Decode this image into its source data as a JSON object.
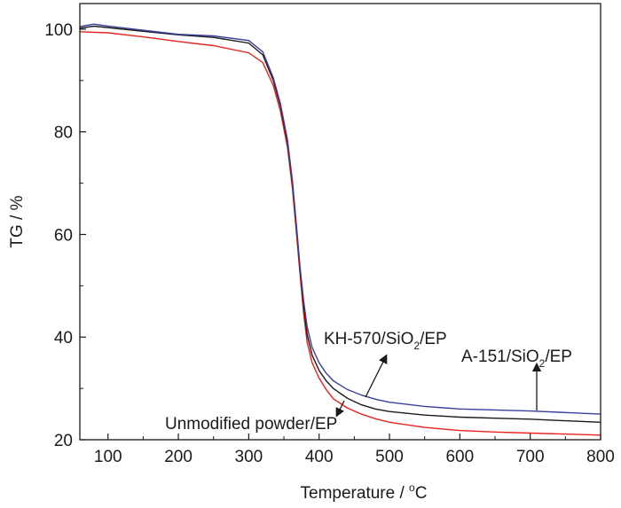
{
  "chart_data": {
    "type": "line",
    "xlabel": "Temperature / ",
    "xlabel_unit_sup": "o",
    "xlabel_unit": "C",
    "ylabel": "TG / %",
    "xlim": [
      60,
      800
    ],
    "ylim": [
      20,
      105
    ],
    "xticks": [
      100,
      200,
      300,
      400,
      500,
      600,
      700,
      800
    ],
    "yticks": [
      20,
      40,
      60,
      80,
      100
    ],
    "grid": false,
    "series": [
      {
        "color": "#e8231f",
        "x": [
          60,
          100,
          150,
          200,
          250,
          300,
          320,
          335,
          345,
          355,
          362,
          368,
          373,
          378,
          383,
          390,
          400,
          410,
          420,
          440,
          460,
          480,
          500,
          550,
          600,
          650,
          700,
          750,
          800
        ],
        "y": [
          99.5,
          99.3,
          98.5,
          97.6,
          96.8,
          95.4,
          93.5,
          89.0,
          84.0,
          77.0,
          69.0,
          60.0,
          52.0,
          44.5,
          39.0,
          35.0,
          32.0,
          29.8,
          28.0,
          26.2,
          25.0,
          24.1,
          23.4,
          22.4,
          21.8,
          21.5,
          21.3,
          21.1,
          20.9
        ]
      },
      {
        "color": "#1a1a1a",
        "x": [
          60,
          80,
          100,
          150,
          200,
          250,
          300,
          320,
          335,
          345,
          355,
          362,
          368,
          373,
          378,
          383,
          390,
          400,
          410,
          420,
          440,
          460,
          480,
          500,
          550,
          600,
          650,
          700,
          750,
          800
        ],
        "y": [
          100.2,
          100.6,
          100.3,
          99.6,
          98.9,
          98.4,
          97.3,
          95.0,
          90.0,
          85.0,
          78.0,
          70.0,
          61.0,
          53.0,
          46.0,
          40.5,
          36.5,
          33.5,
          31.5,
          30.0,
          28.1,
          26.8,
          26.0,
          25.5,
          24.8,
          24.4,
          24.2,
          24.0,
          23.7,
          23.4
        ]
      },
      {
        "color": "#3b3f9c",
        "x": [
          60,
          80,
          100,
          150,
          200,
          250,
          300,
          320,
          335,
          345,
          355,
          362,
          368,
          373,
          378,
          383,
          390,
          400,
          410,
          420,
          440,
          460,
          480,
          500,
          550,
          600,
          650,
          700,
          750,
          800
        ],
        "y": [
          100.5,
          101.0,
          100.6,
          99.8,
          99.0,
          98.7,
          97.8,
          95.6,
          90.5,
          85.5,
          78.5,
          70.5,
          61.5,
          53.5,
          47.0,
          42.0,
          38.0,
          35.0,
          33.0,
          31.5,
          29.8,
          28.7,
          27.9,
          27.3,
          26.5,
          26.0,
          25.8,
          25.6,
          25.3,
          25.0
        ]
      }
    ],
    "annotations": [
      {
        "label_main": "KH-570/SiO",
        "label_sub": "2",
        "label_end": "/EP"
      },
      {
        "label_main": "A-151/SiO",
        "label_sub": "2",
        "label_end": "/EP"
      },
      {
        "label_main": "Unmodified powder/EP"
      }
    ]
  }
}
